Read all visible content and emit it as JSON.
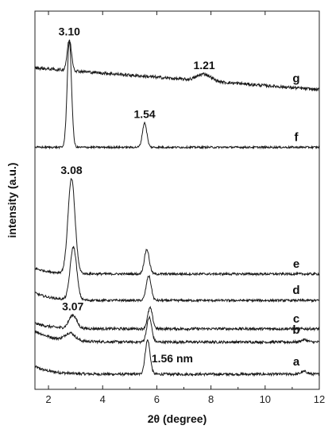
{
  "chart_data": {
    "type": "line",
    "xlabel": "2θ (degree)",
    "ylabel": "intensity (a.u.)",
    "xlim": [
      1.5,
      12
    ],
    "x_ticks": [
      "2",
      "4",
      "6",
      "8",
      "10",
      "12"
    ],
    "y_ticks": "none",
    "grid": false,
    "legend": "none",
    "line_color": "#1a1a1a",
    "series": [
      {
        "name": "a",
        "baseline": 0.04,
        "tail": {
          "height": 0.02,
          "decay": 0.6
        },
        "peaks": [
          {
            "x": 5.66,
            "height": 0.09,
            "width": 0.09
          },
          {
            "x": 11.45,
            "height": 0.007,
            "width": 0.12
          }
        ],
        "noise": 0.0035
      },
      {
        "name": "b",
        "baseline": 0.125,
        "tail": {
          "height": 0.03,
          "decay": 0.7
        },
        "peaks": [
          {
            "x": 2.8,
            "height": 0.02,
            "width": 0.18
          },
          {
            "x": 5.72,
            "height": 0.065,
            "width": 0.09
          },
          {
            "x": 11.45,
            "height": 0.006,
            "width": 0.12
          }
        ],
        "noise": 0.0035
      },
      {
        "name": "c",
        "baseline": 0.16,
        "tail": {
          "height": 0.015,
          "decay": 0.6
        },
        "peaks": [
          {
            "x": 2.9,
            "height": 0.035,
            "width": 0.14
          },
          {
            "x": 5.75,
            "height": 0.055,
            "width": 0.09
          }
        ],
        "noise": 0.0035
      },
      {
        "name": "d",
        "baseline": 0.235,
        "tail": {
          "height": 0.02,
          "decay": 0.6
        },
        "peaks": [
          {
            "x": 2.92,
            "height": 0.14,
            "width": 0.12
          },
          {
            "x": 5.7,
            "height": 0.065,
            "width": 0.09
          }
        ],
        "noise": 0.003
      },
      {
        "name": "e",
        "baseline": 0.305,
        "tail": {
          "height": 0.015,
          "decay": 0.6
        },
        "peaks": [
          {
            "x": 2.85,
            "height": 0.25,
            "width": 0.13
          },
          {
            "x": 5.63,
            "height": 0.065,
            "width": 0.09
          }
        ],
        "noise": 0.003
      },
      {
        "name": "f",
        "baseline": 0.64,
        "tail": {
          "height": 0.0,
          "decay": 0.6
        },
        "peaks": [
          {
            "x": 2.77,
            "height": 0.28,
            "width": 0.08
          },
          {
            "x": 5.55,
            "height": 0.065,
            "width": 0.08
          }
        ],
        "noise": 0.0025
      },
      {
        "name": "g",
        "baseline": 0.85,
        "slope": -0.0055,
        "tail": {
          "height": 0.0,
          "decay": 0.6
        },
        "peaks": [
          {
            "x": 2.77,
            "height": 0.08,
            "width": 0.08
          },
          {
            "x": 7.75,
            "height": 0.018,
            "width": 0.25
          }
        ],
        "noise": 0.004
      }
    ],
    "annotations": [
      {
        "text": "3.10",
        "x": 2.77,
        "series": "g"
      },
      {
        "text": "1.21",
        "x": 7.75,
        "series": "g"
      },
      {
        "text": "1.54",
        "x": 5.55,
        "series": "f"
      },
      {
        "text": "3.08",
        "x": 2.85,
        "series": "e"
      },
      {
        "text": "3.07",
        "x": 2.9,
        "series": "c"
      },
      {
        "text": "1.56 nm",
        "x": 5.66,
        "series": "a"
      }
    ]
  }
}
